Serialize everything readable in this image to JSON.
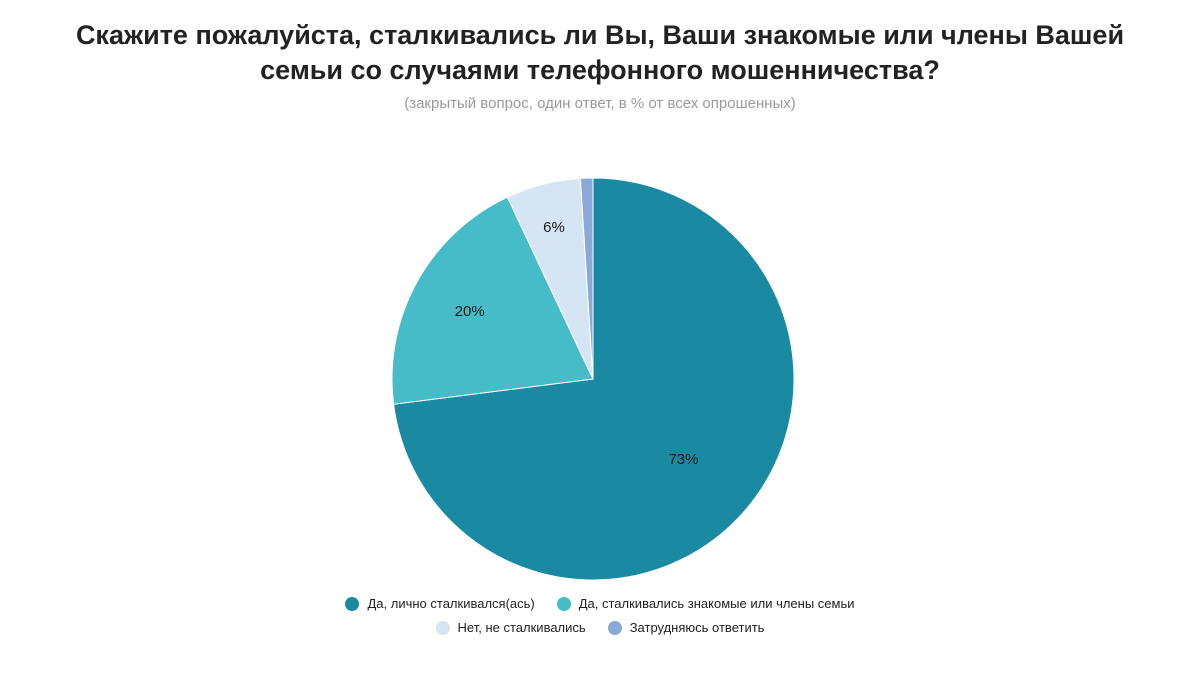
{
  "chart_data": {
    "type": "pie",
    "title_lines": [
      "Скажите пожалуйста, сталкивались ли Вы, Ваши знакомые или члены Вашей",
      "семьи со случаями телефонного мошенничества?"
    ],
    "subtitle": "(закрытый вопрос, один ответ, в % от всех опрошенных)",
    "slices": [
      {
        "name": "Да, лично сталкивался(ась)",
        "value": 73,
        "label": "73%",
        "color": "#1a8aa3"
      },
      {
        "name": "Да, сталкивались знакомые или члены семьи",
        "value": 20,
        "label": "20%",
        "color": "#46bcc8"
      },
      {
        "name": "Нет, не сталкивались",
        "value": 6,
        "label": "6%",
        "color": "#d6e5f3"
      },
      {
        "name": "Затрудняюсь ответить",
        "value": 1,
        "label": "",
        "color": "#8aa9d6"
      }
    ],
    "start_angle_deg": 0,
    "direction": "clockwise",
    "legend_placement": "bottom"
  }
}
